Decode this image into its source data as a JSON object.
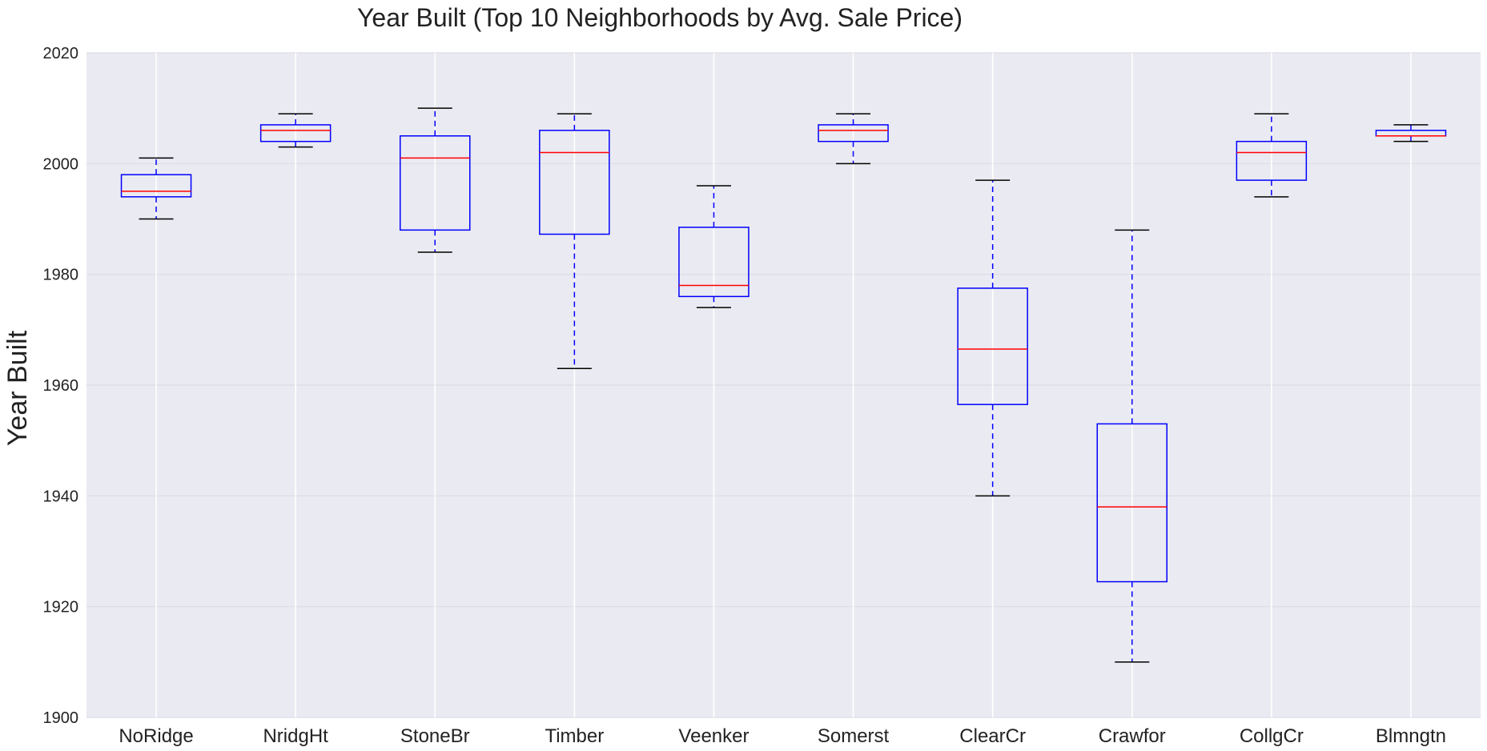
{
  "chart_data": {
    "type": "boxplot",
    "title": "Year Built (Top 10 Neighborhoods by Avg. Sale Price)",
    "xlabel": "",
    "ylabel": "Year Built",
    "ylim": [
      1900,
      2020
    ],
    "yticks": [
      1900,
      1920,
      1940,
      1960,
      1980,
      2000,
      2020
    ],
    "grid": true,
    "categories": [
      "NoRidge",
      "NridgHt",
      "StoneBr",
      "Timber",
      "Veenker",
      "Somerst",
      "ClearCr",
      "Crawfor",
      "CollgCr",
      "Blmngtn"
    ],
    "boxes": [
      {
        "label": "NoRidge",
        "whisker_low": 1990,
        "q1": 1994,
        "median": 1995,
        "q3": 1998,
        "whisker_high": 2001
      },
      {
        "label": "NridgHt",
        "whisker_low": 2003,
        "q1": 2004,
        "median": 2006,
        "q3": 2007,
        "whisker_high": 2009
      },
      {
        "label": "StoneBr",
        "whisker_low": 1984,
        "q1": 1988,
        "median": 2001,
        "q3": 2005,
        "whisker_high": 2010
      },
      {
        "label": "Timber",
        "whisker_low": 1963,
        "q1": 1987.25,
        "median": 2002,
        "q3": 2006,
        "whisker_high": 2009
      },
      {
        "label": "Veenker",
        "whisker_low": 1974,
        "q1": 1976,
        "median": 1978,
        "q3": 1988.5,
        "whisker_high": 1996
      },
      {
        "label": "Somerst",
        "whisker_low": 2000,
        "q1": 2004,
        "median": 2006,
        "q3": 2007,
        "whisker_high": 2009
      },
      {
        "label": "ClearCr",
        "whisker_low": 1940,
        "q1": 1956.5,
        "median": 1966.5,
        "q3": 1977.5,
        "whisker_high": 1997
      },
      {
        "label": "Crawfor",
        "whisker_low": 1910,
        "q1": 1924.5,
        "median": 1938,
        "q3": 1953,
        "whisker_high": 1988
      },
      {
        "label": "CollgCr",
        "whisker_low": 1994,
        "q1": 1997,
        "median": 2002,
        "q3": 2004,
        "whisker_high": 2009
      },
      {
        "label": "Blmngtn",
        "whisker_low": 2004,
        "q1": 2005,
        "median": 2005,
        "q3": 2006,
        "whisker_high": 2007
      }
    ],
    "colors": {
      "background": "#eaeaf2",
      "grid": "#ffffff",
      "box": "#0000ff",
      "median": "#ff0000",
      "whisker": "#0000ff",
      "cap": "#000000"
    }
  }
}
